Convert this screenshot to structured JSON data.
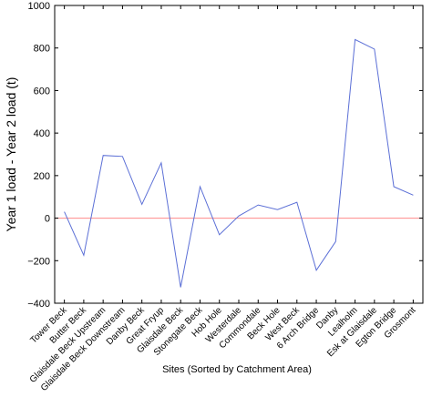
{
  "chart_data": {
    "type": "line",
    "title": "",
    "xlabel": "Sites (Sorted by Catchment Area)",
    "ylabel": "Year 1 load - Year 2 load (t)",
    "ylim": [
      -400,
      1000
    ],
    "yticks": [
      -400,
      -200,
      0,
      200,
      400,
      600,
      800,
      1000
    ],
    "grid": false,
    "legend": "none",
    "reference_line": {
      "y": 0,
      "color": "#ff8a8a"
    },
    "categories": [
      "Tower Beck",
      "Butter Beck",
      "Glaisdale Beck Upstream",
      "Glaisdale Beck Downstream",
      "Danby Beck",
      "Great Fryup",
      "Glaisdale Beck",
      "Stonegate Beck",
      "Hob Hole",
      "Westerdale",
      "Commondale",
      "Beck Hole",
      "West Beck",
      "6 Arch Bridge",
      "Danby",
      "Lealholm",
      "Esk at Glaisdale",
      "Egton Bridge",
      "Grosmont"
    ],
    "series": [
      {
        "color": "#5b6fd6",
        "values": [
          30,
          -175,
          295,
          290,
          65,
          260,
          -325,
          148,
          -78,
          10,
          62,
          40,
          75,
          -245,
          -110,
          840,
          795,
          148,
          108
        ]
      }
    ]
  }
}
